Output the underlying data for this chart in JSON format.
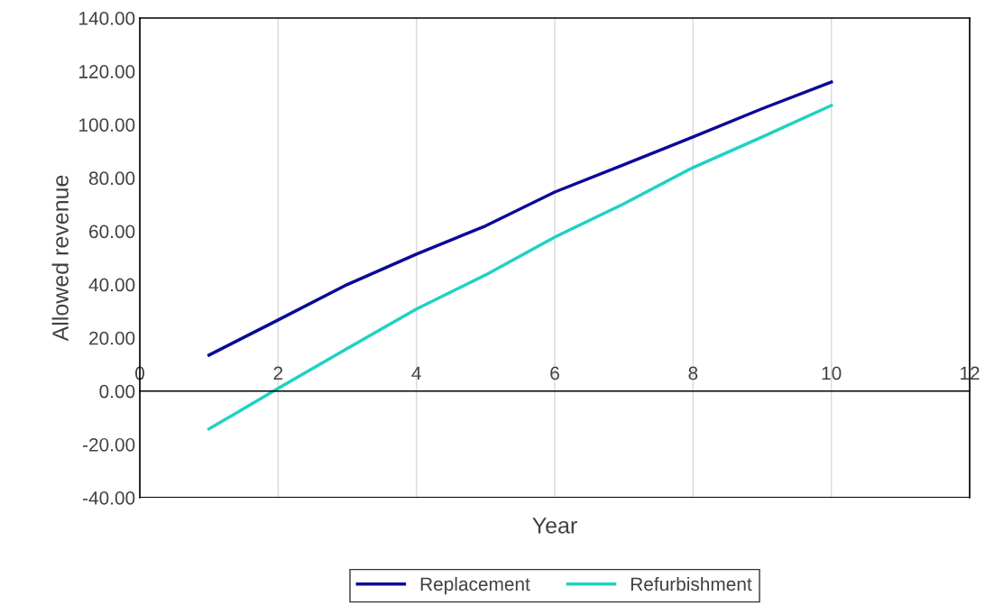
{
  "chart_data": {
    "type": "line",
    "xlabel": "Year",
    "ylabel": "Allowed revenue",
    "x": [
      1,
      2,
      3,
      4,
      5,
      6,
      7,
      8,
      9,
      10
    ],
    "series": [
      {
        "name": "Replacement",
        "color": "#0a0a96",
        "values": [
          13.5,
          26.7,
          40,
          51.4,
          62,
          74.7,
          85,
          95.4,
          106,
          116
        ]
      },
      {
        "name": "Refurbishment",
        "color": "#1ed2c3",
        "values": [
          -14.2,
          1,
          16,
          30.8,
          43.6,
          57.8,
          70.3,
          83.9,
          95.4,
          107.2
        ]
      }
    ],
    "xlim": [
      0,
      12
    ],
    "xticks": [
      0,
      2,
      4,
      6,
      8,
      10,
      12
    ],
    "ylim": [
      -40,
      140
    ],
    "yticks": [
      {
        "value": -40,
        "label": "-40.00"
      },
      {
        "value": -20,
        "label": "-20.00"
      },
      {
        "value": 0,
        "label": "0.00"
      },
      {
        "value": 20,
        "label": "20.00"
      },
      {
        "value": 40,
        "label": "40.00"
      },
      {
        "value": 60,
        "label": "60.00"
      },
      {
        "value": 80,
        "label": "80.00"
      },
      {
        "value": 100,
        "label": "100.00"
      },
      {
        "value": 120,
        "label": "120.00"
      },
      {
        "value": 140,
        "label": "140.00"
      }
    ],
    "grid": "x",
    "legend": "bottom",
    "marker": "none",
    "line_style": "solid"
  }
}
